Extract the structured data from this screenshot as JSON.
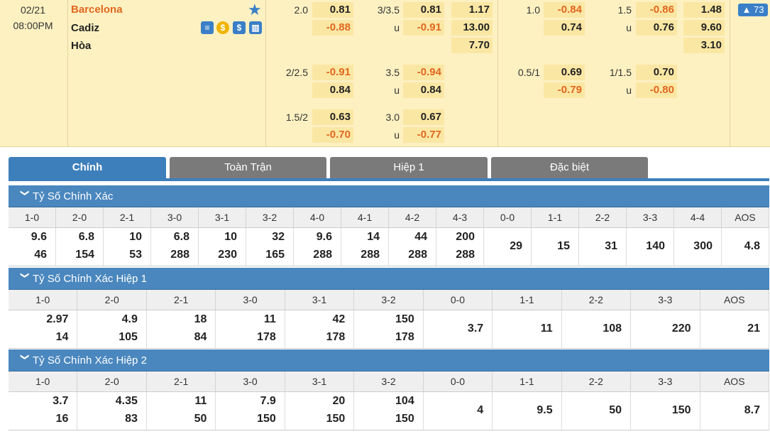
{
  "match": {
    "date": "02/21",
    "time": "08:00PM",
    "home": "Barcelona",
    "away": "Cadiz",
    "draw": "Hòa",
    "more_count": "73"
  },
  "odds": {
    "ah_main": {
      "line": "2.0",
      "home": "0.81",
      "away": "-0.88"
    },
    "ou_main": {
      "line": "3/3.5",
      "over": "0.81",
      "u": "u",
      "under": "-0.91"
    },
    "x12": {
      "home": "1.17",
      "away": "13.00",
      "draw": "7.70"
    },
    "h1_ah": {
      "line": "1.0",
      "home": "-0.84",
      "away": "0.74"
    },
    "h1_ou": {
      "line": "1.5",
      "over": "-0.86",
      "u": "u",
      "under": "0.76"
    },
    "h1_x12": {
      "home": "1.48",
      "away": "9.60",
      "draw": "3.10"
    },
    "ah2": {
      "line": "2/2.5",
      "home": "-0.91",
      "away": "0.84"
    },
    "ou2": {
      "line": "3.5",
      "over": "-0.94",
      "u": "u",
      "under": "0.84"
    },
    "h1_ah2": {
      "line": "0.5/1",
      "home": "0.69",
      "away": "-0.79"
    },
    "h1_ou2": {
      "line": "1/1.5",
      "over": "0.70",
      "u": "u",
      "under": "-0.80"
    },
    "ah3": {
      "line": "1.5/2",
      "home": "0.63",
      "away": "-0.70"
    },
    "ou3": {
      "line": "3.0",
      "over": "0.67",
      "u": "u",
      "under": "-0.77"
    }
  },
  "tabs": [
    "Chính",
    "Toàn Trận",
    "Hiệp 1",
    "Đặc biệt"
  ],
  "sections": [
    {
      "title": "Tỷ Số Chính Xác",
      "cols": [
        "1-0",
        "2-0",
        "2-1",
        "3-0",
        "3-1",
        "3-2",
        "4-0",
        "4-1",
        "4-2",
        "4-3",
        "0-0",
        "1-1",
        "2-2",
        "3-3",
        "4-4",
        "AOS"
      ],
      "vals": [
        [
          "9.6",
          "46"
        ],
        [
          "6.8",
          "154"
        ],
        [
          "10",
          "53"
        ],
        [
          "6.8",
          "288"
        ],
        [
          "10",
          "230"
        ],
        [
          "32",
          "165"
        ],
        [
          "9.6",
          "288"
        ],
        [
          "14",
          "288"
        ],
        [
          "44",
          "288"
        ],
        [
          "200",
          "288"
        ],
        [
          "29"
        ],
        [
          "15"
        ],
        [
          "31"
        ],
        [
          "140"
        ],
        [
          "300"
        ],
        [
          "4.8"
        ]
      ]
    },
    {
      "title": "Tỷ Số Chính Xác Hiệp 1",
      "cols": [
        "1-0",
        "2-0",
        "2-1",
        "3-0",
        "3-1",
        "3-2",
        "0-0",
        "1-1",
        "2-2",
        "3-3",
        "AOS"
      ],
      "vals": [
        [
          "2.97",
          "14"
        ],
        [
          "4.9",
          "105"
        ],
        [
          "18",
          "84"
        ],
        [
          "11",
          "178"
        ],
        [
          "42",
          "178"
        ],
        [
          "150",
          "178"
        ],
        [
          "3.7"
        ],
        [
          "11"
        ],
        [
          "108"
        ],
        [
          "220"
        ],
        [
          "21"
        ]
      ]
    },
    {
      "title": "Tỷ Số Chính Xác Hiệp 2",
      "cols": [
        "1-0",
        "2-0",
        "2-1",
        "3-0",
        "3-1",
        "3-2",
        "0-0",
        "1-1",
        "2-2",
        "3-3",
        "AOS"
      ],
      "vals": [
        [
          "3.7",
          "16"
        ],
        [
          "4.35",
          "83"
        ],
        [
          "11",
          "50"
        ],
        [
          "7.9",
          "150"
        ],
        [
          "20",
          "150"
        ],
        [
          "104",
          "150"
        ],
        [
          "4"
        ],
        [
          "9.5"
        ],
        [
          "50"
        ],
        [
          "150"
        ],
        [
          "8.7"
        ]
      ]
    }
  ]
}
